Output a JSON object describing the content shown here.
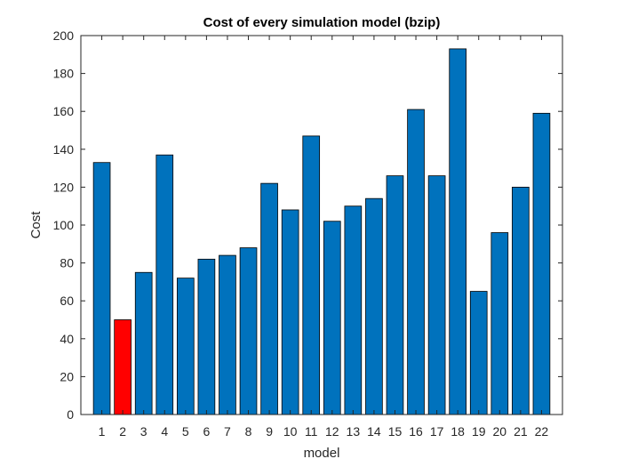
{
  "chart_data": {
    "type": "bar",
    "title": "Cost of every simulation model (bzip)",
    "xlabel": "model",
    "ylabel": "Cost",
    "categories": [
      "1",
      "2",
      "3",
      "4",
      "5",
      "6",
      "7",
      "8",
      "9",
      "10",
      "11",
      "12",
      "13",
      "14",
      "15",
      "16",
      "17",
      "18",
      "19",
      "20",
      "21",
      "22"
    ],
    "values": [
      133,
      50,
      75,
      137,
      72,
      82,
      84,
      88,
      122,
      108,
      147,
      102,
      110,
      114,
      126,
      161,
      126,
      193,
      65,
      96,
      120,
      159
    ],
    "ylim": [
      0,
      200
    ],
    "yticks": [
      0,
      20,
      40,
      60,
      80,
      100,
      120,
      140,
      160,
      180,
      200
    ],
    "grid": false,
    "colors": {
      "default_bar": "#0072BD",
      "highlight_bar": "#FF0000"
    },
    "highlight_index": 1
  }
}
